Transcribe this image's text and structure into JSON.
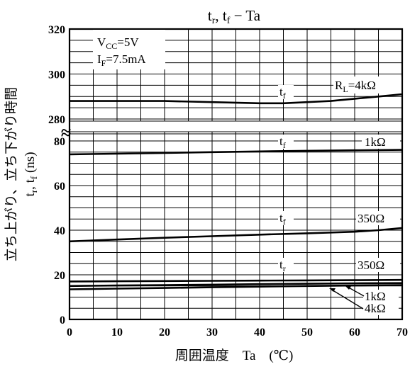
{
  "chart_data": {
    "type": "line",
    "title": "tr, tf − Ta",
    "title_parts": {
      "a": "t",
      "a_sub": "r",
      "b": ", t",
      "b_sub": "f",
      "c": " − Ta"
    },
    "xlabel": "周囲温度　Ta　(℃)",
    "ylabel": "立ち上がり、立ち下がり時間",
    "ylabel2": {
      "a": "t",
      "a_sub": "r",
      "b": ", t",
      "b_sub": "f",
      "c": " (ns)"
    },
    "xlim": [
      0,
      70
    ],
    "x_ticks": [
      "0",
      "10",
      "20",
      "30",
      "40",
      "50",
      "60",
      "70"
    ],
    "y_ticks_lower": [
      "0",
      "20",
      "40",
      "60",
      "80"
    ],
    "y_ticks_upper": [
      "280",
      "300",
      "320"
    ],
    "y_axis_break": "≈",
    "grid": true,
    "conditions": {
      "vcc": {
        "a": "V",
        "sub": "CC",
        "b": "=5V"
      },
      "if": {
        "a": "I",
        "sub": "F",
        "b": "=7.5mA"
      }
    },
    "series": [
      {
        "id": "tf_4k",
        "label_time": {
          "a": "t",
          "sub": "f"
        },
        "label_load": {
          "pre": "R",
          "sub": "L",
          "post": "=4kΩ"
        },
        "x": [
          0,
          10,
          20,
          30,
          40,
          45,
          50,
          55,
          60,
          65,
          70
        ],
        "y": [
          288,
          288,
          288,
          287.5,
          287,
          287,
          287.5,
          288,
          289,
          290,
          291
        ]
      },
      {
        "id": "tf_1k",
        "label_time": {
          "a": "t",
          "sub": "f"
        },
        "label_load": {
          "post": "1kΩ"
        },
        "x": [
          0,
          10,
          20,
          30,
          40,
          50,
          60,
          70
        ],
        "y": [
          74,
          74.3,
          74.6,
          75,
          75.3,
          75.6,
          75.8,
          76
        ]
      },
      {
        "id": "tf_350",
        "label_time": {
          "a": "t",
          "sub": "f"
        },
        "label_load": {
          "post": "350Ω"
        },
        "x": [
          0,
          10,
          20,
          30,
          40,
          50,
          60,
          65,
          70
        ],
        "y": [
          35,
          35.8,
          36.6,
          37.3,
          38,
          38.6,
          39.3,
          40,
          41
        ]
      },
      {
        "id": "tr_350",
        "label_time": {
          "a": "t",
          "sub": "r"
        },
        "label_load": {
          "post": "350Ω"
        },
        "x": [
          0,
          10,
          20,
          30,
          40,
          50,
          60,
          70
        ],
        "y": [
          17,
          17.1,
          17.2,
          17.3,
          17.4,
          17.5,
          17.6,
          17.7
        ]
      },
      {
        "id": "tr_1k",
        "label_load": {
          "post": "1kΩ"
        },
        "x": [
          0,
          10,
          20,
          30,
          40,
          50,
          60,
          70
        ],
        "y": [
          15,
          15.2,
          15.4,
          15.6,
          15.8,
          16,
          16.2,
          16.3
        ]
      },
      {
        "id": "tr_4k",
        "label_load": {
          "post": "4kΩ"
        },
        "x": [
          0,
          10,
          20,
          30,
          40,
          50,
          60,
          70
        ],
        "y": [
          13.5,
          13.8,
          14.1,
          14.4,
          14.7,
          15,
          15.2,
          15.4
        ]
      }
    ]
  }
}
